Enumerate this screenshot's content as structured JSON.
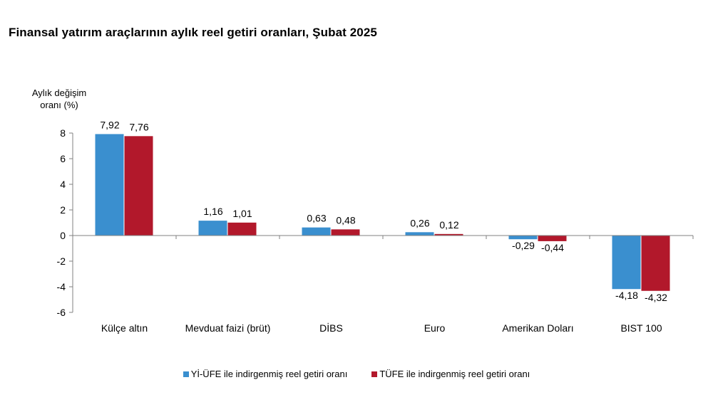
{
  "title": "Finansal yatırım araçlarının aylık reel getiri oranları, Şubat 2025",
  "chart_data": {
    "type": "bar",
    "title": "Finansal yatırım araçlarının aylık reel getiri oranları, Şubat 2025",
    "ylabel_lines": [
      "Aylık değişim",
      "oranı (%)"
    ],
    "xlabel": "",
    "categories": [
      "Külçe altın",
      "Mevduat faizi (brüt)",
      "DİBS",
      "Euro",
      "Amerikan Doları",
      "BIST 100"
    ],
    "ylim": [
      -6,
      8
    ],
    "yticks": [
      8,
      6,
      4,
      2,
      0,
      -2,
      -4,
      -6
    ],
    "grid": false,
    "legend_position": "bottom",
    "series": [
      {
        "name": "Yİ-ÜFE ile indirgenmiş reel getiri oranı",
        "color": "#3a8fcf",
        "values": [
          7.92,
          1.16,
          0.63,
          0.26,
          -0.29,
          -4.18
        ],
        "labels": [
          "7,92",
          "1,16",
          "0,63",
          "0,26",
          "-0,29",
          "-4,18"
        ]
      },
      {
        "name": "TÜFE ile indirgenmiş reel getiri oranı",
        "color": "#b2182b",
        "values": [
          7.76,
          1.01,
          0.48,
          0.12,
          -0.44,
          -4.32
        ],
        "labels": [
          "7,76",
          "1,01",
          "0,48",
          "0,12",
          "-0,44",
          "-4,32"
        ]
      }
    ]
  }
}
